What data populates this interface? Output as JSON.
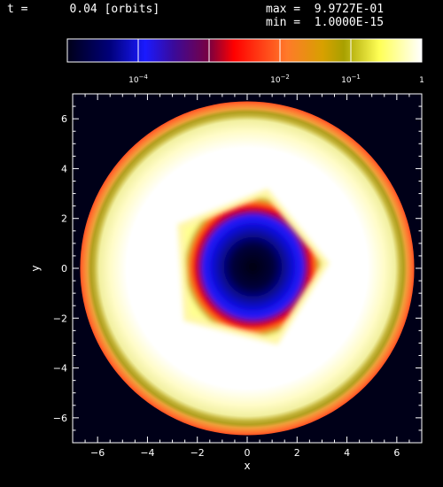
{
  "header": {
    "time_label": "t =",
    "time_value": "0.04",
    "time_unit": "[orbits]",
    "max_label": "max =",
    "max_value": "9.9727E-01",
    "min_label": "min =",
    "min_value": "1.0000E-15"
  },
  "chart_data": {
    "type": "heatmap",
    "title": "",
    "xlabel": "x",
    "ylabel": "y",
    "xlim": [
      -7,
      7
    ],
    "ylim": [
      -7,
      7
    ],
    "x_ticks": [
      -6,
      -4,
      -2,
      0,
      2,
      4,
      6
    ],
    "y_ticks": [
      -6,
      -4,
      -2,
      0,
      2,
      4,
      6
    ],
    "grid": false,
    "colorbar": {
      "scale": "log",
      "range": [
        1e-05,
        1
      ],
      "tick_values": [
        0.0001,
        0.01,
        0.1,
        1
      ],
      "tick_labels": [
        "10^-4",
        "10^-2",
        "10^-1",
        "1"
      ],
      "divider_values": [
        0.0001,
        0.001,
        0.01,
        0.1
      ]
    },
    "structure": {
      "outer_edge_radius": 6.7,
      "outer_band_radius": 6.3,
      "inner_hole_radius": 2.6,
      "inner_band_radius": 2.8,
      "hole_shape": "pentagon",
      "center": [
        0,
        0
      ],
      "ring_level": 0.99,
      "band_level": 0.1,
      "hole_level": 1e-05
    }
  }
}
